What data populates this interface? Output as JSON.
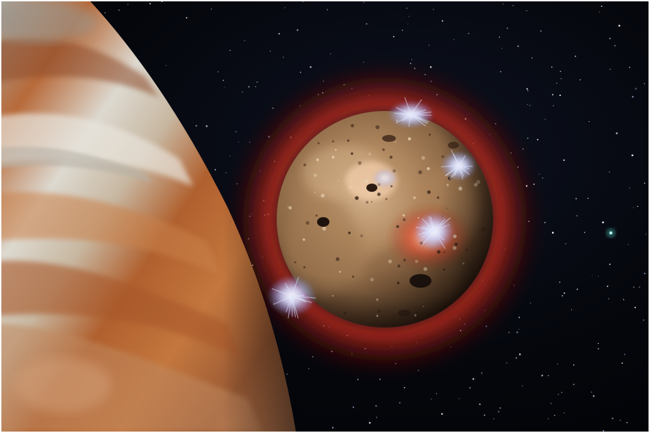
{
  "image": {
    "subject": "space-illustration",
    "background_color": "#05070d",
    "border_color": "#ffffff",
    "elements": [
      {
        "name": "jupiter-limb",
        "colors": [
          "#b8693a",
          "#d8d4cc",
          "#8c4a26"
        ]
      },
      {
        "name": "io-moon",
        "colors": [
          "#9c7a55",
          "#c8a27a",
          "#5a3a22"
        ]
      },
      {
        "name": "red-halo",
        "colors": [
          "#b0201a",
          "#6a1010"
        ]
      },
      {
        "name": "volcanic-plumes",
        "colors": [
          "#e8ecff",
          "#9fb4ff"
        ]
      },
      {
        "name": "starfield",
        "colors": [
          "#ffffff",
          "#bcd4ff"
        ]
      },
      {
        "name": "distant-object",
        "colors": [
          "#58d6d0"
        ]
      }
    ]
  }
}
